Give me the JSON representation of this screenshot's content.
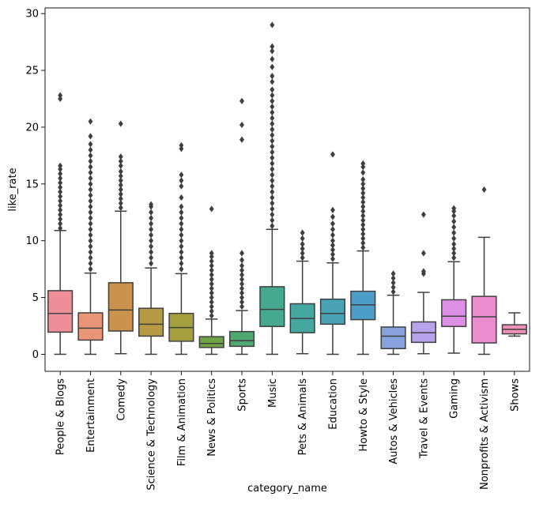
{
  "chart_data": {
    "type": "box",
    "title": "",
    "xlabel": "category_name",
    "ylabel": "like_rate",
    "ylim": [
      -1.5,
      30.5
    ],
    "yticks": [
      0,
      5,
      10,
      15,
      20,
      25,
      30
    ],
    "grid": false,
    "legend": "none",
    "categories": [
      {
        "name": "People & Blogs",
        "color": "#EE8E98",
        "whisker_low": 0,
        "q1": 1.95,
        "median": 3.6,
        "q3": 5.6,
        "whisker_high": 10.9,
        "outliers": [
          11.1,
          11.5,
          11.9,
          12.3,
          12.7,
          13.1,
          13.5,
          13.9,
          14.3,
          14.7,
          15.1,
          15.5,
          15.9,
          16.3,
          16.6,
          22.5,
          22.8
        ]
      },
      {
        "name": "Entertainment",
        "color": "#E8957A",
        "whisker_low": 0,
        "q1": 1.25,
        "median": 2.3,
        "q3": 3.65,
        "whisker_high": 7.15,
        "outliers": [
          7.5,
          8.0,
          8.5,
          9.0,
          9.5,
          10.0,
          10.5,
          11.0,
          11.5,
          12.0,
          12.5,
          13.0,
          13.5,
          14.0,
          14.5,
          15.0,
          15.5,
          16.0,
          16.5,
          17.0,
          17.5,
          18.0,
          18.5,
          19.2,
          20.5
        ]
      },
      {
        "name": "Comedy",
        "color": "#C9924E",
        "whisker_low": 0.05,
        "q1": 2.05,
        "median": 3.9,
        "q3": 6.3,
        "whisker_high": 12.6,
        "outliers": [
          12.9,
          13.3,
          13.7,
          14.1,
          14.5,
          14.9,
          15.3,
          15.7,
          16.1,
          16.6,
          17.0,
          17.4,
          20.3
        ]
      },
      {
        "name": "Science & Technology",
        "color": "#B69A44",
        "whisker_low": 0,
        "q1": 1.6,
        "median": 2.65,
        "q3": 4.05,
        "whisker_high": 7.6,
        "outliers": [
          8.0,
          8.5,
          9.0,
          9.5,
          10.0,
          10.5,
          11.0,
          11.5,
          12.0,
          12.5,
          13.0,
          13.2
        ]
      },
      {
        "name": "Film & Animation",
        "color": "#A4A03D",
        "whisker_low": 0,
        "q1": 1.15,
        "median": 2.35,
        "q3": 3.6,
        "whisker_high": 7.1,
        "outliers": [
          7.5,
          8.0,
          8.5,
          9.0,
          9.5,
          10.0,
          10.5,
          11.0,
          11.5,
          12.0,
          12.5,
          13.0,
          13.8,
          14.8,
          15.3,
          15.8,
          18.1,
          18.4
        ]
      },
      {
        "name": "News & Politics",
        "color": "#6FA345",
        "whisker_low": 0,
        "q1": 0.6,
        "median": 0.95,
        "q3": 1.55,
        "whisker_high": 3.1,
        "outliers": [
          3.4,
          3.8,
          4.2,
          4.6,
          5.0,
          5.4,
          5.8,
          6.2,
          6.6,
          7.0,
          7.4,
          7.8,
          8.2,
          8.6,
          8.9,
          12.8
        ]
      },
      {
        "name": "Sports",
        "color": "#4FA872",
        "whisker_low": 0,
        "q1": 0.7,
        "median": 1.2,
        "q3": 2.0,
        "whisker_high": 3.85,
        "outliers": [
          4.2,
          4.6,
          5.0,
          5.4,
          5.8,
          6.2,
          6.6,
          7.0,
          7.4,
          7.8,
          8.3,
          8.9,
          18.9,
          20.2,
          22.3
        ]
      },
      {
        "name": "Music",
        "color": "#45A88F",
        "whisker_low": 0,
        "q1": 2.45,
        "median": 3.95,
        "q3": 5.95,
        "whisker_high": 11.0,
        "outliers": [
          11.3,
          11.8,
          12.3,
          12.8,
          13.3,
          13.8,
          14.3,
          14.8,
          15.3,
          15.8,
          16.3,
          16.8,
          17.3,
          17.8,
          18.3,
          18.8,
          19.3,
          19.8,
          20.3,
          20.8,
          21.3,
          21.8,
          22.3,
          22.8,
          23.3,
          24.0,
          24.5,
          25.3,
          26.0,
          26.7,
          27.1,
          29.0
        ]
      },
      {
        "name": "Pets & Animals",
        "color": "#46A6A0",
        "whisker_low": 0.05,
        "q1": 1.9,
        "median": 3.15,
        "q3": 4.45,
        "whisker_high": 8.2,
        "outliers": [
          8.5,
          8.9,
          9.3,
          9.7,
          10.2,
          10.7
        ]
      },
      {
        "name": "Education",
        "color": "#48A4B4",
        "whisker_low": 0,
        "q1": 2.65,
        "median": 3.6,
        "q3": 4.85,
        "whisker_high": 8.05,
        "outliers": [
          8.4,
          8.8,
          9.2,
          9.6,
          10.0,
          10.5,
          11.0,
          11.5,
          12.1,
          12.7,
          17.6
        ]
      },
      {
        "name": "Howto & Style",
        "color": "#4C9EC9",
        "whisker_low": 0,
        "q1": 3.05,
        "median": 4.35,
        "q3": 5.55,
        "whisker_high": 9.1,
        "outliers": [
          9.4,
          9.8,
          10.2,
          10.6,
          11.0,
          11.4,
          11.8,
          12.2,
          12.6,
          13.0,
          13.4,
          13.8,
          14.2,
          14.6,
          15.0,
          15.4,
          16.0,
          16.5,
          16.8
        ]
      },
      {
        "name": "Autos & Vehicles",
        "color": "#86A3E0",
        "whisker_low": 0,
        "q1": 0.5,
        "median": 1.6,
        "q3": 2.4,
        "whisker_high": 5.2,
        "outliers": [
          5.5,
          5.9,
          6.3,
          6.7,
          7.1
        ]
      },
      {
        "name": "Travel & Events",
        "color": "#B7A3EC",
        "whisker_low": 0.05,
        "q1": 1.05,
        "median": 1.9,
        "q3": 2.85,
        "whisker_high": 5.45,
        "outliers": [
          7.1,
          7.3,
          8.9,
          12.3
        ]
      },
      {
        "name": "Gaming",
        "color": "#DC8FE4",
        "whisker_low": 0.1,
        "q1": 2.45,
        "median": 3.35,
        "q3": 4.8,
        "whisker_high": 8.15,
        "outliers": [
          8.5,
          8.9,
          9.3,
          9.7,
          10.2,
          10.7,
          11.2,
          11.7,
          12.2,
          12.6,
          12.85
        ]
      },
      {
        "name": "Nonprofits & Activism",
        "color": "#E98DCF",
        "whisker_low": 0,
        "q1": 1.0,
        "median": 3.3,
        "q3": 5.1,
        "whisker_high": 10.3,
        "outliers": [
          14.5
        ]
      },
      {
        "name": "Shows",
        "color": "#EE91B8",
        "whisker_low": 1.6,
        "q1": 1.8,
        "median": 2.2,
        "q3": 2.6,
        "whisker_high": 3.65,
        "outliers": []
      }
    ]
  }
}
